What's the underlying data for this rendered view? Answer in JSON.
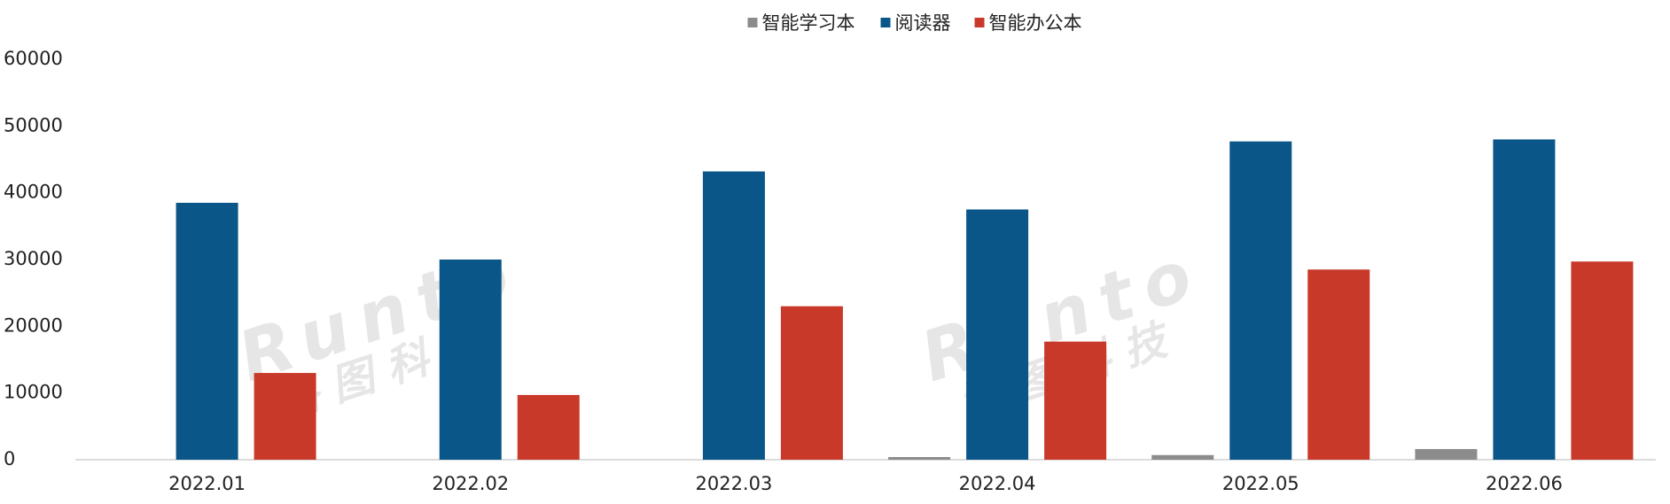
{
  "chart_data": {
    "type": "bar",
    "categories": [
      "2022.01",
      "2022.02",
      "2022.03",
      "2022.04",
      "2022.05",
      "2022.06"
    ],
    "series": [
      {
        "name": "智能学习本",
        "color": "#8c8c8c",
        "values": [
          0,
          0,
          0,
          400,
          700,
          1600
        ]
      },
      {
        "name": "阅读器",
        "color": "#0a5689",
        "values": [
          38500,
          30000,
          43200,
          37500,
          47700,
          48000
        ]
      },
      {
        "name": "智能办公本",
        "color": "#c9392a",
        "values": [
          13000,
          9700,
          23000,
          17700,
          28500,
          29700
        ]
      }
    ],
    "ylim": [
      0,
      60000
    ],
    "yticks": [
      0,
      10000,
      20000,
      30000,
      40000,
      50000,
      60000
    ],
    "legend": "top",
    "grid": false,
    "watermark": [
      "Runto",
      "洛 图 科 技"
    ]
  }
}
